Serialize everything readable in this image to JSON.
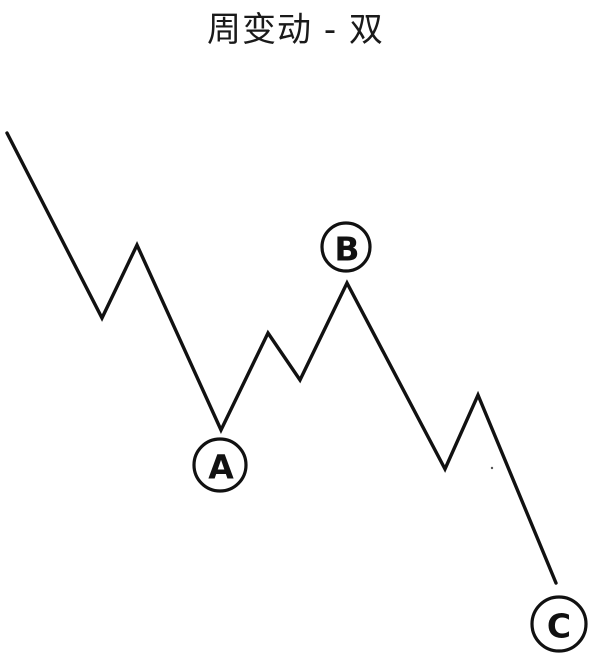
{
  "title": "周变动 - 双",
  "labels": {
    "a": "A",
    "b": "B",
    "c": "C"
  },
  "colors": {
    "line": "#111111",
    "background": "#ffffff"
  }
}
